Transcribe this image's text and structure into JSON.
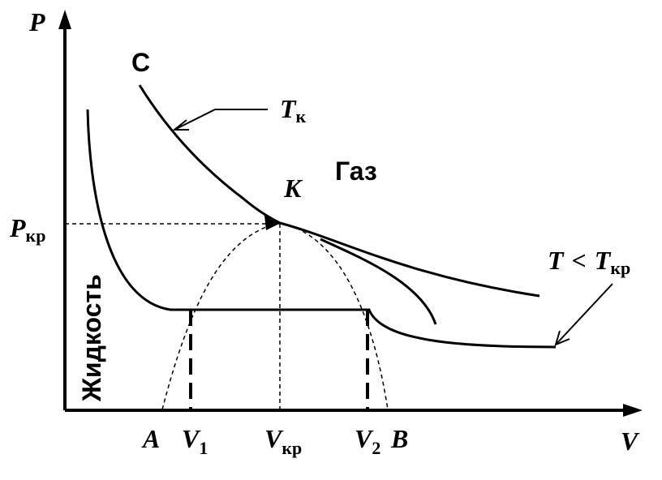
{
  "axes": {
    "y": "P",
    "x": "V"
  },
  "labels": {
    "c": "C",
    "tk": {
      "base": "T",
      "sub": "к"
    },
    "gas": "Газ",
    "k": "K",
    "pkr": {
      "base": "P",
      "sub": "кр"
    },
    "t_lt": {
      "left": "T",
      "op": "<",
      "base": "T",
      "sub": "кр"
    },
    "liquid": "Жидкость",
    "a": "A",
    "v1": {
      "base": "V",
      "sub": "1"
    },
    "vkr": {
      "base": "V",
      "sub": "кр"
    },
    "v2": {
      "base": "V",
      "sub": "2"
    },
    "b": "B"
  }
}
